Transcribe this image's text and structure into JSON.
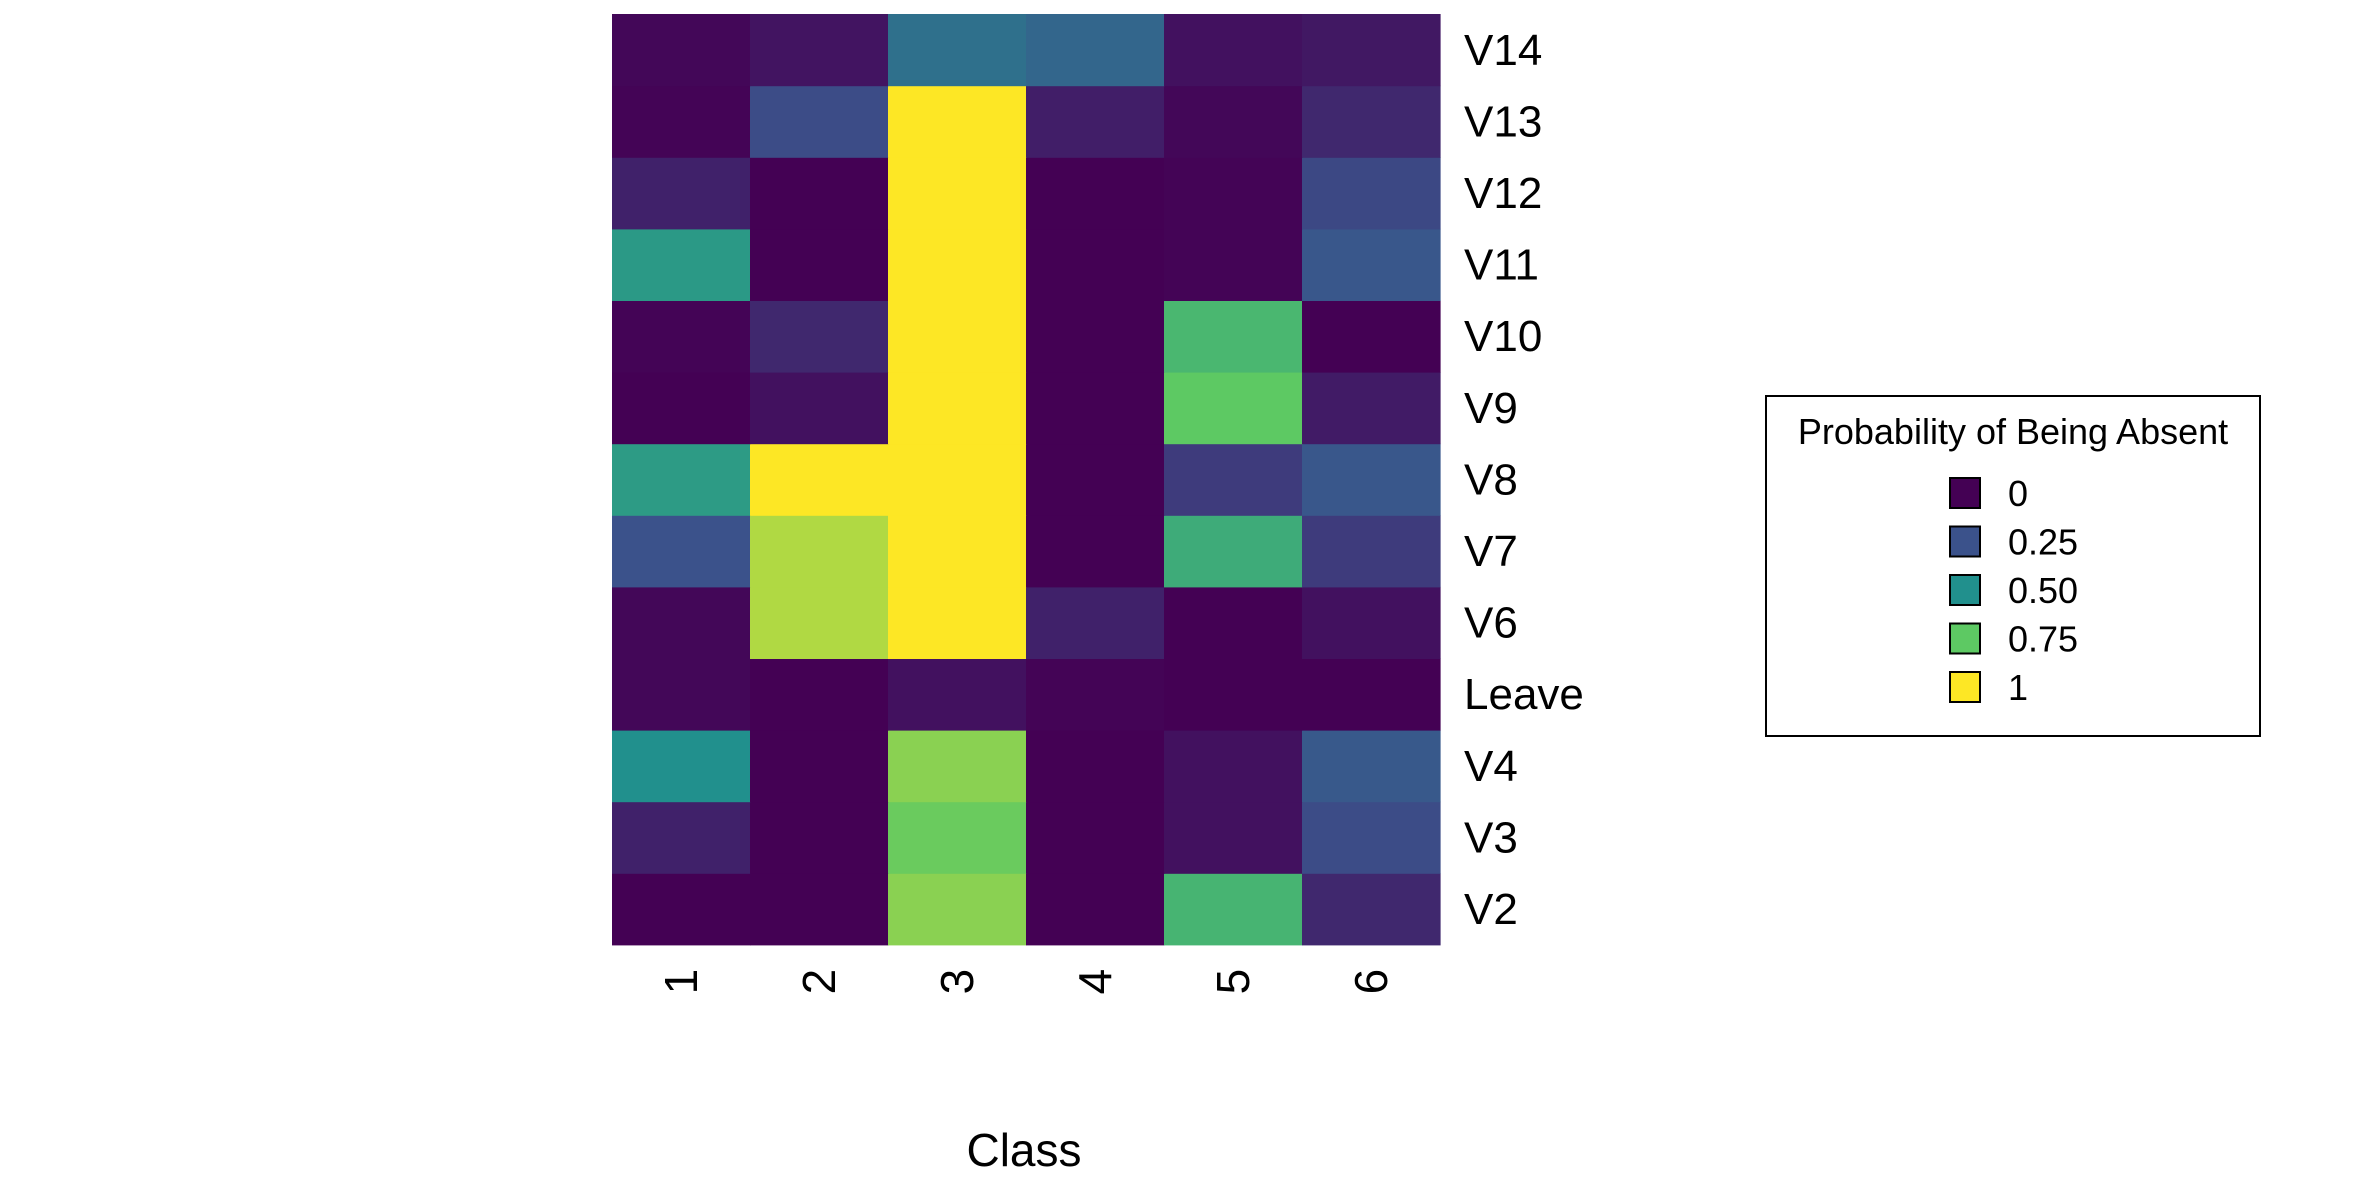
{
  "chart_data": {
    "type": "heatmap",
    "xlabel": "Class",
    "ylabel": "",
    "x_categories": [
      "1",
      "2",
      "3",
      "4",
      "5",
      "6"
    ],
    "y_categories": [
      "V2",
      "V3",
      "V4",
      "Leave",
      "V6",
      "V7",
      "V8",
      "V9",
      "V10",
      "V11",
      "V12",
      "V13",
      "V14"
    ],
    "values": [
      [
        0.0,
        0.0,
        0.82,
        0.0,
        0.66,
        0.12
      ],
      [
        0.1,
        0.0,
        0.77,
        0.0,
        0.05,
        0.23
      ],
      [
        0.5,
        0.0,
        0.82,
        0.0,
        0.05,
        0.28
      ],
      [
        0.02,
        0.0,
        0.05,
        0.01,
        0.0,
        0.0
      ],
      [
        0.02,
        0.88,
        1.0,
        0.1,
        0.0,
        0.05
      ],
      [
        0.25,
        0.88,
        1.0,
        0.0,
        0.62,
        0.18
      ],
      [
        0.55,
        1.0,
        1.0,
        0.0,
        0.18,
        0.27
      ],
      [
        0.0,
        0.05,
        1.0,
        0.0,
        0.75,
        0.08
      ],
      [
        0.01,
        0.12,
        1.0,
        0.0,
        0.67,
        0.0
      ],
      [
        0.54,
        0.0,
        1.0,
        0.0,
        0.01,
        0.27
      ],
      [
        0.1,
        0.0,
        1.0,
        0.0,
        0.01,
        0.22
      ],
      [
        0.01,
        0.23,
        1.0,
        0.09,
        0.02,
        0.12
      ],
      [
        0.02,
        0.06,
        0.37,
        0.33,
        0.05,
        0.07
      ]
    ],
    "value_range": [
      0,
      1
    ],
    "colormap": "viridis",
    "colormap_stops": [
      "#440154",
      "#3b528b",
      "#21908d",
      "#5dc963",
      "#fde725"
    ],
    "legend": {
      "title": "Probability of Being Absent",
      "placement": "right",
      "items": [
        {
          "label": "0",
          "value": 0
        },
        {
          "label": "0.25",
          "value": 0.25
        },
        {
          "label": "0.50",
          "value": 0.5
        },
        {
          "label": "0.75",
          "value": 0.75
        },
        {
          "label": "1",
          "value": 1
        }
      ]
    },
    "grid": false
  }
}
